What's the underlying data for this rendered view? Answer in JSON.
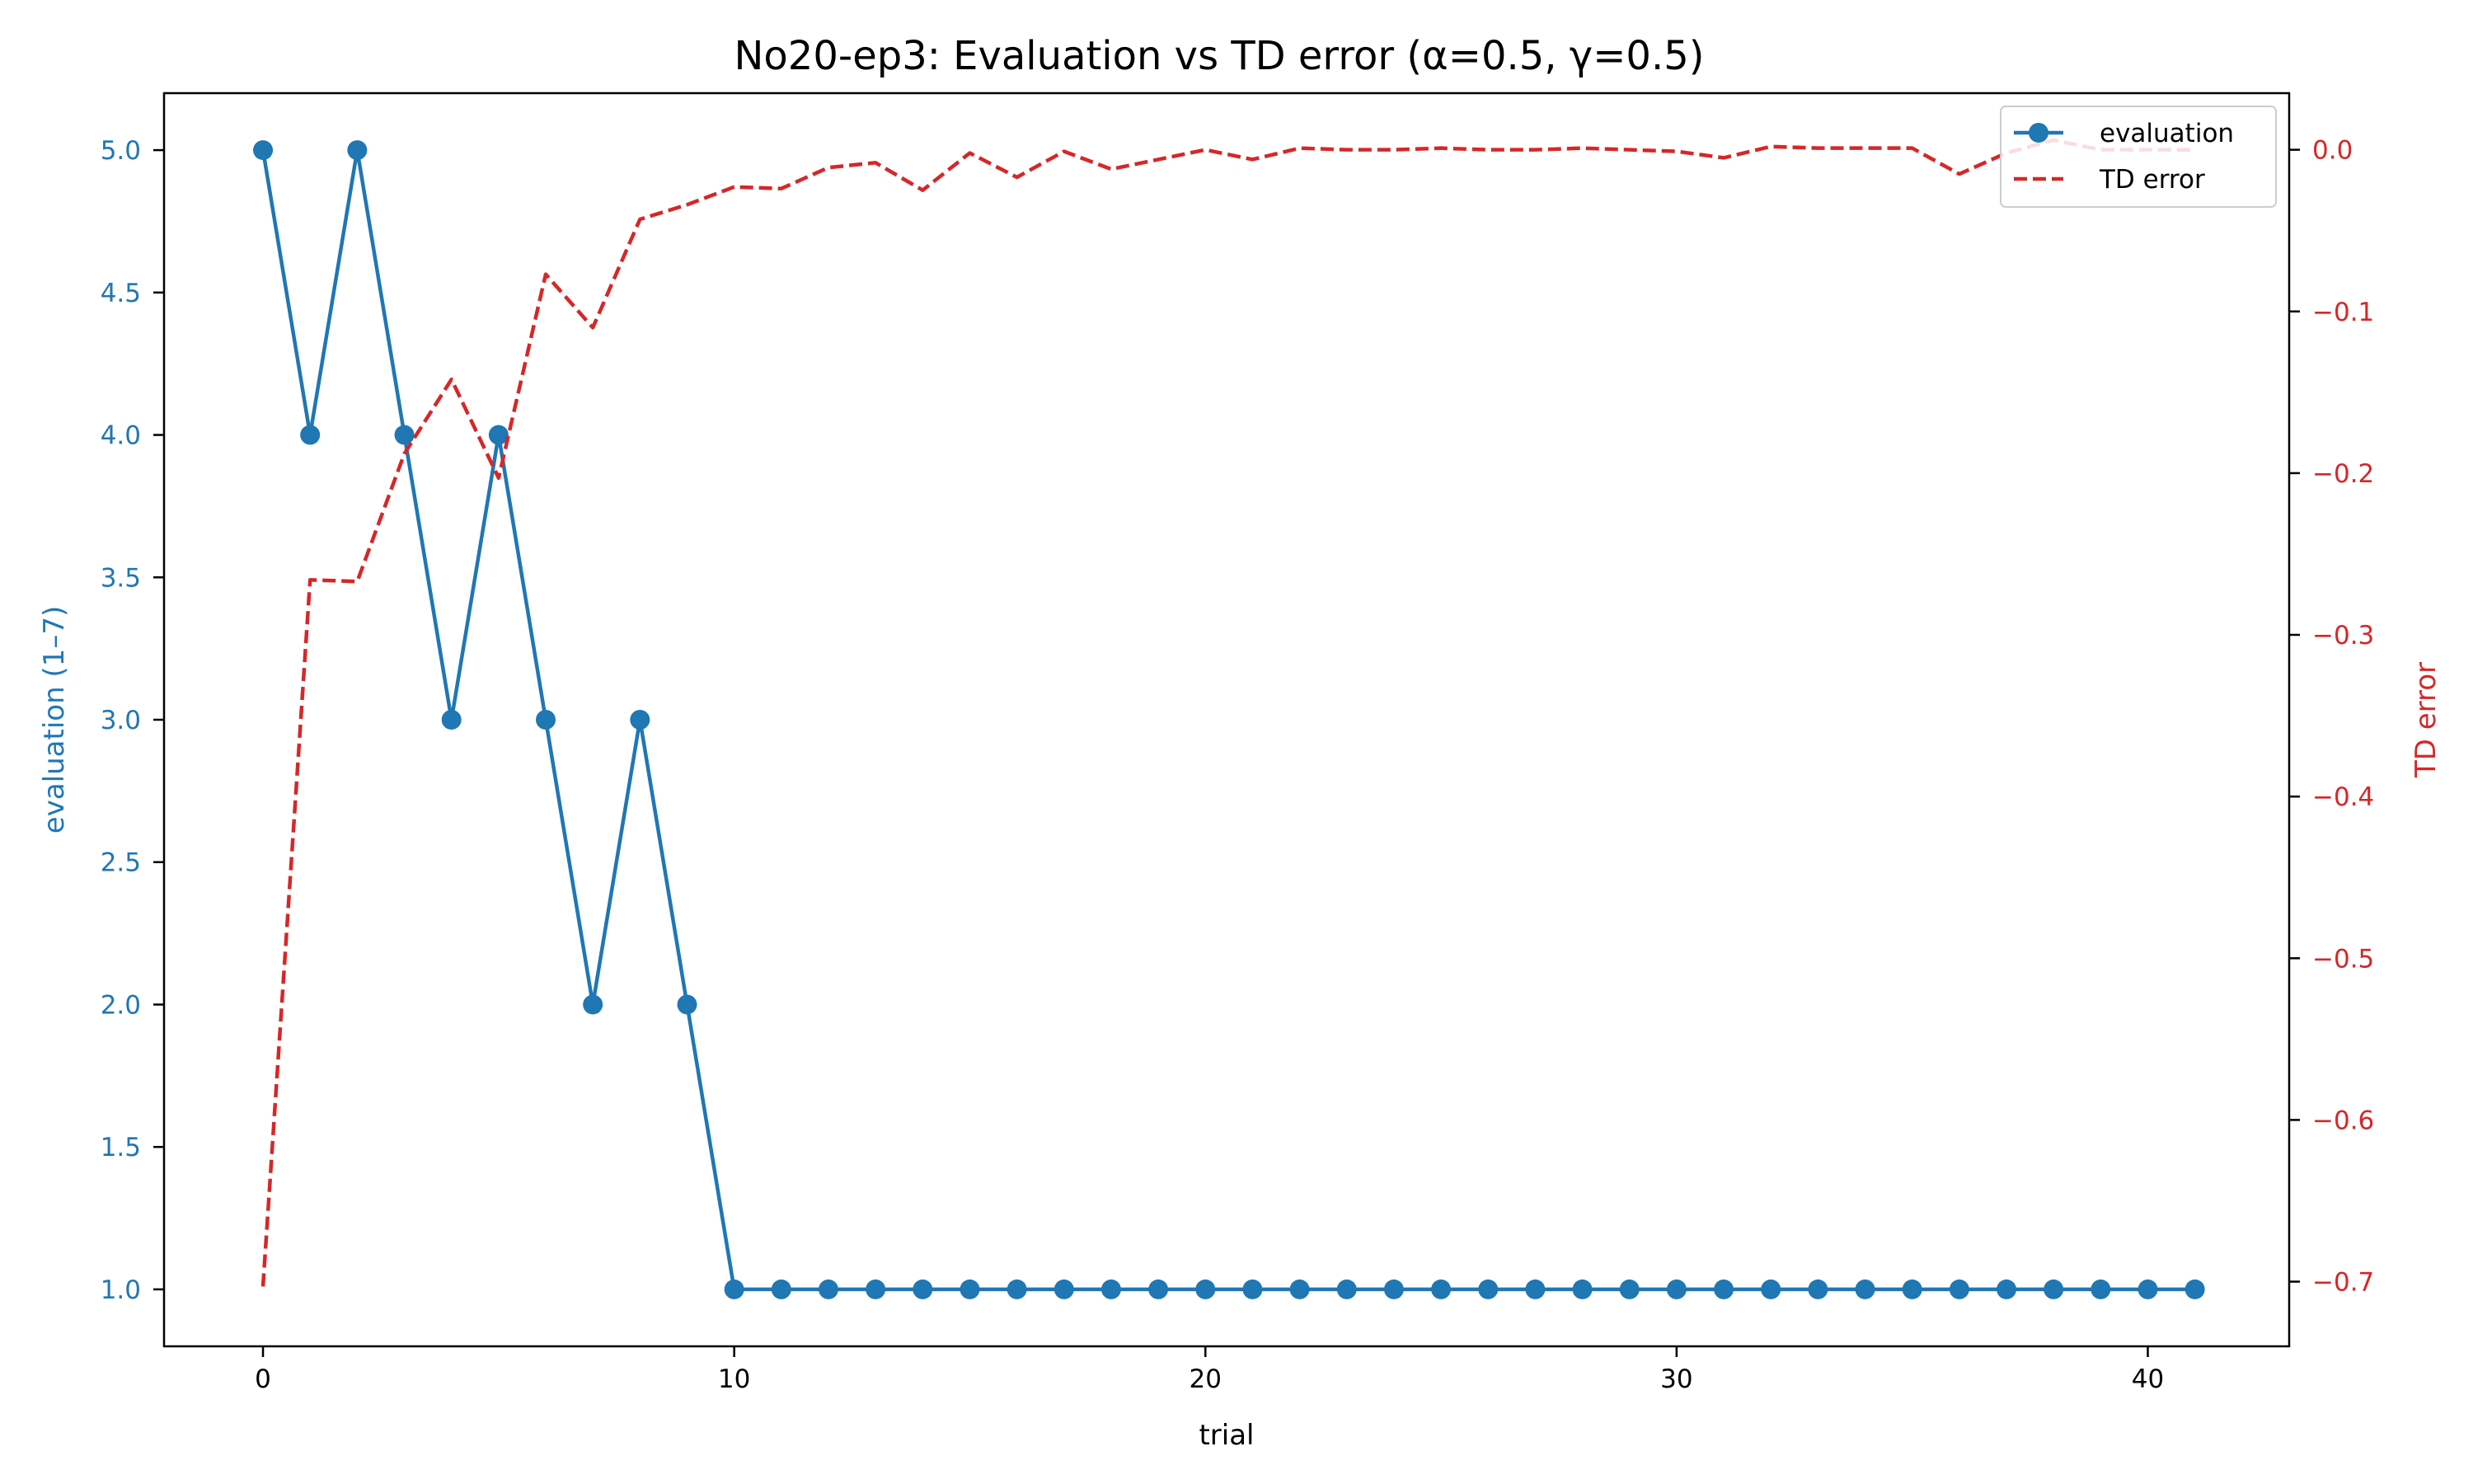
{
  "chart_data": {
    "type": "line",
    "title": "No20-ep3: Evaluation vs TD error (α=0.5, γ=0.5)",
    "xlabel": "trial",
    "ylabel_left": "evaluation (1–7)",
    "ylabel_right": "TD error",
    "xlim": [
      -2.1,
      43.0
    ],
    "ylim_left": [
      0.8,
      5.2
    ],
    "ylim_right": [
      -0.74,
      0.035
    ],
    "x_ticks": [
      0,
      10,
      20,
      30,
      40
    ],
    "x_tick_labels": [
      "0",
      "10",
      "20",
      "30",
      "40"
    ],
    "y_left_ticks": [
      1.0,
      1.5,
      2.0,
      2.5,
      3.0,
      3.5,
      4.0,
      4.5,
      5.0
    ],
    "y_left_tick_labels": [
      "1.0",
      "1.5",
      "2.0",
      "2.5",
      "3.0",
      "3.5",
      "4.0",
      "4.5",
      "5.0"
    ],
    "y_right_ticks": [
      0.0,
      -0.1,
      -0.2,
      -0.3,
      -0.4,
      -0.5,
      -0.6,
      -0.7
    ],
    "y_right_tick_labels": [
      "0.0",
      "−0.1",
      "−0.2",
      "−0.3",
      "−0.4",
      "−0.5",
      "−0.6",
      "−0.7"
    ],
    "grid": false,
    "legend_position": "top-right",
    "x": [
      0,
      1,
      2,
      3,
      4,
      5,
      6,
      7,
      8,
      9,
      10,
      11,
      12,
      13,
      14,
      15,
      16,
      17,
      18,
      19,
      20,
      21,
      22,
      23,
      24,
      25,
      26,
      27,
      28,
      29,
      30,
      31,
      32,
      33,
      34,
      35,
      36,
      37,
      38,
      39,
      40,
      41
    ],
    "series": [
      {
        "name": "evaluation",
        "axis": "left",
        "color": "#1f77b4",
        "style": "solid-markers",
        "values": [
          5,
          4,
          5,
          4,
          3,
          4,
          3,
          2,
          3,
          2,
          1,
          1,
          1,
          1,
          1,
          1,
          1,
          1,
          1,
          1,
          1,
          1,
          1,
          1,
          1,
          1,
          1,
          1,
          1,
          1,
          1,
          1,
          1,
          1,
          1,
          1,
          1,
          1,
          1,
          1,
          1,
          1
        ]
      },
      {
        "name": "TD error",
        "axis": "right",
        "color": "#d62728",
        "style": "dashed",
        "values": [
          -0.703,
          -0.266,
          -0.267,
          -0.188,
          -0.142,
          -0.203,
          -0.077,
          -0.11,
          -0.043,
          -0.034,
          -0.023,
          -0.024,
          -0.011,
          -0.008,
          -0.025,
          -0.002,
          -0.017,
          -0.001,
          -0.012,
          -0.006,
          0.0,
          -0.006,
          0.001,
          0.0,
          0.0,
          0.001,
          0.0,
          0.0,
          0.001,
          0.0,
          -0.001,
          -0.005,
          0.002,
          0.001,
          0.001,
          0.001,
          -0.015,
          -0.002,
          0.006,
          0.0,
          0.0,
          0.0
        ]
      }
    ]
  }
}
